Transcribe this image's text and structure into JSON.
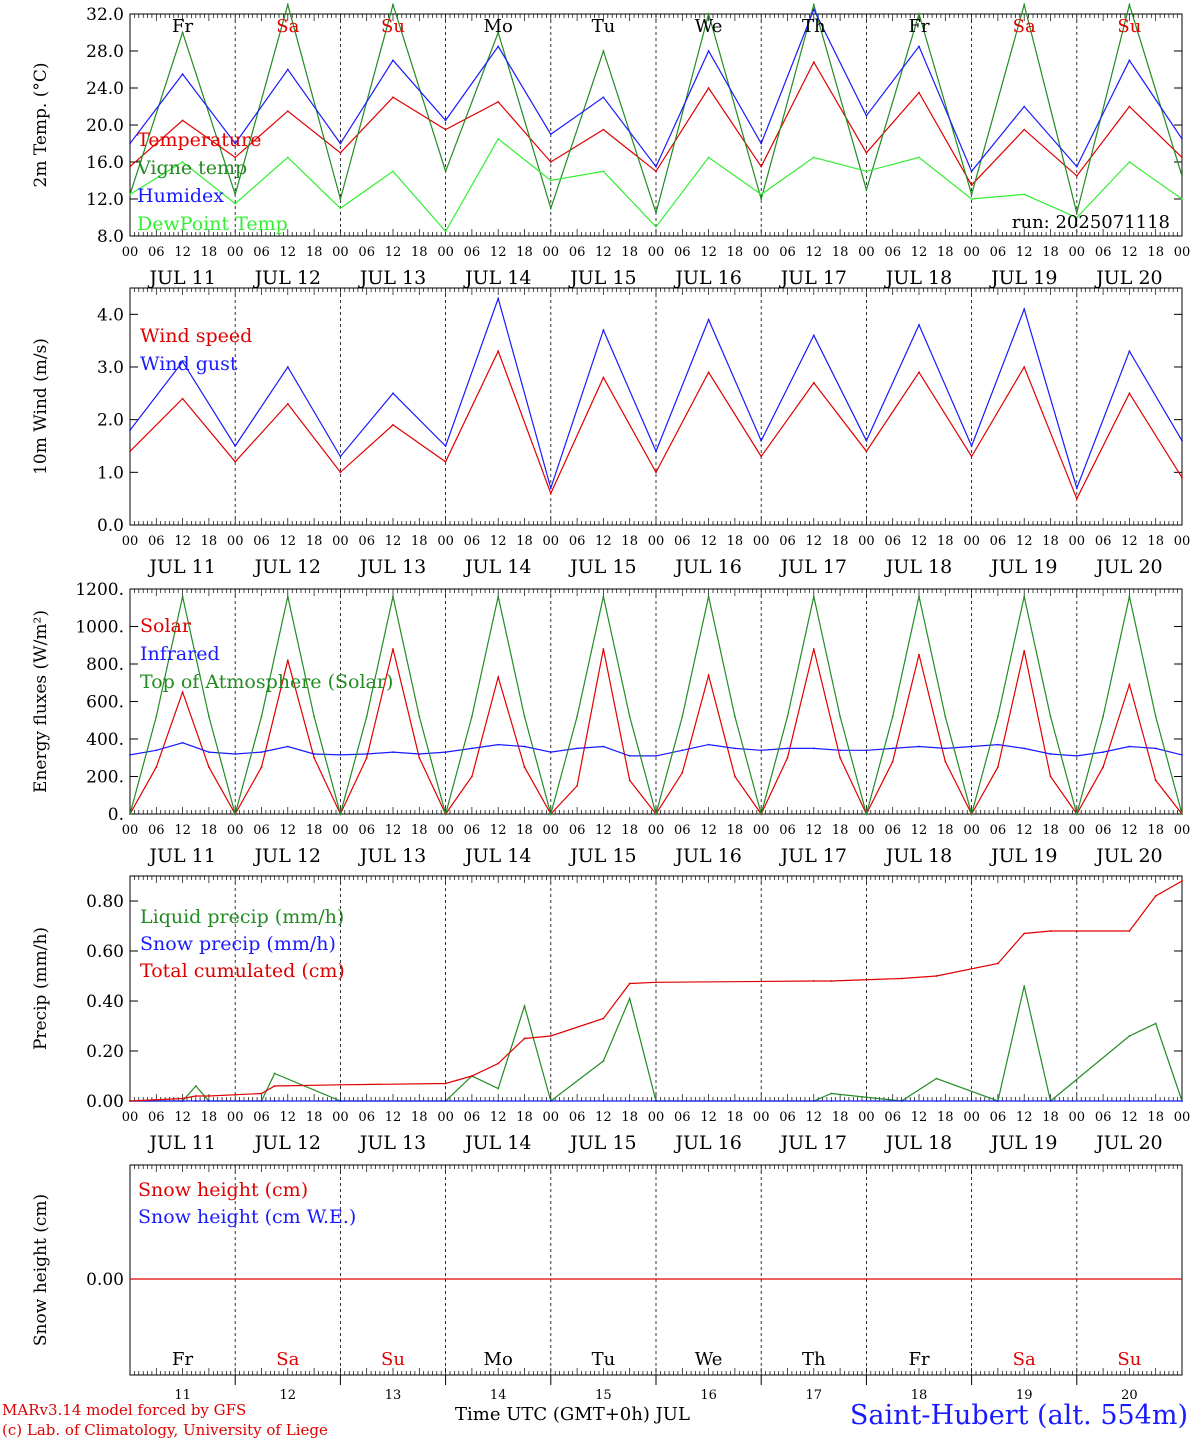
{
  "days": {
    "weekdays": [
      "Fr",
      "Sa",
      "Su",
      "Mo",
      "Tu",
      "We",
      "Th",
      "Fr",
      "Sa",
      "Su"
    ],
    "weekday_colors": [
      "#000000",
      "#e00000",
      "#e00000",
      "#000000",
      "#000000",
      "#000000",
      "#000000",
      "#000000",
      "#e00000",
      "#e00000"
    ],
    "dates": [
      "JUL 11",
      "JUL 12",
      "JUL 13",
      "JUL 14",
      "JUL 15",
      "JUL 16",
      "JUL 17",
      "JUL 18",
      "JUL 19",
      "JUL 20"
    ],
    "day_numbers": [
      "11",
      "12",
      "13",
      "14",
      "15",
      "16",
      "17",
      "18",
      "19",
      "20"
    ],
    "hour_labels": [
      "00",
      "06",
      "12",
      "18"
    ],
    "final_hour_label": "00"
  },
  "chart_data": [
    {
      "type": "line",
      "ylabel": "2m Temp. (°C)",
      "ylim": [
        8,
        32
      ],
      "yticks": [
        "8.0",
        "12.0",
        "16.0",
        "20.0",
        "24.0",
        "28.0",
        "32.0"
      ],
      "annotation": "run: 2025071118",
      "x_hours": [
        0,
        12,
        24,
        36,
        48,
        60,
        72,
        84,
        96,
        108,
        120,
        132,
        144,
        156,
        168,
        180,
        192,
        204,
        216,
        228,
        240
      ],
      "series": [
        {
          "name": "Temperature",
          "color": "#e00000",
          "values": [
            15.5,
            20.5,
            16.5,
            21.5,
            17,
            23,
            19.5,
            22.5,
            16,
            19.5,
            15,
            24,
            15.5,
            26.8,
            17,
            23.5,
            13.5,
            19.5,
            14.5,
            22,
            16.5
          ]
        },
        {
          "name": "Vigne temp",
          "color": "#228b22",
          "values": [
            12.5,
            30,
            12.5,
            33,
            12,
            33,
            15,
            30,
            11,
            28,
            10.5,
            32,
            12,
            33,
            13,
            32,
            12.5,
            33,
            10.5,
            33,
            14.5
          ]
        },
        {
          "name": "Humidex",
          "color": "#1a1aff",
          "values": [
            18,
            25.5,
            18,
            26,
            18,
            27,
            20.5,
            28.5,
            19,
            23,
            15.5,
            28,
            18,
            32.5,
            21,
            28.5,
            15,
            22,
            15.5,
            27,
            18.5
          ]
        },
        {
          "name": "DewPoint Temp",
          "color": "#33ee33",
          "values": [
            12.5,
            16,
            11.5,
            16.5,
            11,
            15,
            8.5,
            18.5,
            14,
            15,
            9,
            16.5,
            12.5,
            16.5,
            15,
            16.5,
            12,
            12.5,
            10,
            16,
            12
          ]
        }
      ]
    },
    {
      "type": "line",
      "ylabel": "10m Wind (m/s)",
      "ylim": [
        0,
        4.5
      ],
      "yticks": [
        "0.0",
        "1.0",
        "2.0",
        "3.0",
        "4.0"
      ],
      "x_hours": [
        0,
        12,
        24,
        36,
        48,
        60,
        72,
        84,
        96,
        108,
        120,
        132,
        144,
        156,
        168,
        180,
        192,
        204,
        216,
        228,
        240
      ],
      "series": [
        {
          "name": "Wind speed",
          "color": "#e00000",
          "values": [
            1.4,
            2.4,
            1.2,
            2.3,
            1.0,
            1.9,
            1.2,
            3.3,
            0.6,
            2.8,
            1.0,
            2.9,
            1.3,
            2.7,
            1.4,
            2.9,
            1.3,
            3.0,
            0.5,
            2.5,
            0.9
          ]
        },
        {
          "name": "Wind gust",
          "color": "#1a1aff",
          "values": [
            1.8,
            3.1,
            1.5,
            3.0,
            1.3,
            2.5,
            1.5,
            4.3,
            0.7,
            3.7,
            1.4,
            3.9,
            1.6,
            3.6,
            1.6,
            3.8,
            1.5,
            4.1,
            0.7,
            3.3,
            1.6
          ]
        }
      ]
    },
    {
      "type": "line",
      "ylabel": "Energy fluxes (W/m²)",
      "ylim": [
        0,
        1200
      ],
      "yticks": [
        "0.",
        "200.",
        "400.",
        "600.",
        "800.",
        "1000.",
        "1200."
      ],
      "x_hours": [
        0,
        6,
        12,
        18,
        24,
        30,
        36,
        42,
        48,
        54,
        60,
        66,
        72,
        78,
        84,
        90,
        96,
        102,
        108,
        114,
        120,
        126,
        132,
        138,
        144,
        150,
        156,
        162,
        168,
        174,
        180,
        186,
        192,
        198,
        204,
        210,
        216,
        222,
        228,
        234,
        240
      ],
      "series": [
        {
          "name": "Solar",
          "color": "#e00000",
          "values": [
            0,
            250,
            650,
            250,
            0,
            250,
            820,
            300,
            0,
            300,
            880,
            300,
            0,
            200,
            730,
            250,
            0,
            150,
            880,
            180,
            0,
            220,
            740,
            200,
            0,
            300,
            880,
            300,
            0,
            280,
            850,
            280,
            0,
            250,
            870,
            200,
            0,
            250,
            690,
            180,
            0
          ]
        },
        {
          "name": "Infrared",
          "color": "#1a1aff",
          "values": [
            315,
            340,
            380,
            330,
            320,
            330,
            360,
            320,
            315,
            320,
            330,
            320,
            330,
            350,
            370,
            360,
            330,
            350,
            360,
            310,
            310,
            340,
            370,
            350,
            340,
            350,
            350,
            340,
            340,
            350,
            360,
            350,
            360,
            370,
            350,
            320,
            310,
            330,
            360,
            350,
            315
          ]
        },
        {
          "name": "Top of Atmosphere (Solar)",
          "color": "#228b22",
          "values": [
            0,
            520,
            1160,
            520,
            0,
            520,
            1160,
            520,
            0,
            520,
            1160,
            520,
            0,
            520,
            1160,
            520,
            0,
            520,
            1160,
            520,
            0,
            520,
            1160,
            520,
            0,
            520,
            1160,
            520,
            0,
            520,
            1160,
            520,
            0,
            520,
            1160,
            520,
            0,
            520,
            1160,
            520,
            0
          ]
        }
      ]
    },
    {
      "type": "line",
      "ylabel": "Precip (mm/h)",
      "ylim": [
        0,
        0.9
      ],
      "yticks": [
        "0.00",
        "0.20",
        "0.40",
        "0.60",
        "0.80"
      ],
      "x_hours": [
        0,
        12,
        15,
        18,
        30,
        33,
        48,
        72,
        78,
        84,
        90,
        96,
        108,
        114,
        120,
        156,
        160,
        176,
        184,
        198,
        204,
        210,
        228,
        234,
        240
      ],
      "series": [
        {
          "name": "Liquid precip (mm/h)",
          "color": "#228b22",
          "values": [
            0,
            0,
            0.06,
            0,
            0,
            0.11,
            0,
            0,
            0.1,
            0.05,
            0.38,
            0,
            0.16,
            0.41,
            0,
            0,
            0.03,
            0,
            0.09,
            0,
            0.46,
            0,
            0.26,
            0.31,
            0
          ]
        },
        {
          "name": "Snow precip (mm/h)",
          "color": "#1a1aff",
          "values": [
            0,
            0,
            0,
            0,
            0,
            0,
            0,
            0,
            0,
            0,
            0,
            0,
            0,
            0,
            0,
            0,
            0,
            0,
            0,
            0,
            0,
            0,
            0,
            0,
            0
          ]
        },
        {
          "name": "Total cumulated (cm)",
          "color": "#e00000",
          "values": [
            0,
            0.01,
            0.02,
            0.02,
            0.03,
            0.06,
            0.065,
            0.07,
            0.1,
            0.15,
            0.25,
            0.26,
            0.33,
            0.47,
            0.475,
            0.48,
            0.48,
            0.49,
            0.5,
            0.55,
            0.67,
            0.68,
            0.68,
            0.82,
            0.88
          ]
        }
      ]
    },
    {
      "type": "line",
      "ylabel": "Snow height (cm)",
      "yticks": [
        "0.00"
      ],
      "x_hours": [
        0,
        240
      ],
      "series": [
        {
          "name": "Snow height (cm)",
          "color": "#e00000",
          "values": [
            0,
            0
          ]
        },
        {
          "name": "Snow height (cm W.E.)",
          "color": "#1a1aff",
          "values": [
            0,
            0
          ]
        }
      ]
    }
  ],
  "footer": {
    "model_line": "MARv3.14 model forced by GFS",
    "credit_line": "(c) Lab. of Climatology, University of Liege",
    "xaxis_label": "Time UTC (GMT+0h) JUL",
    "station": "Saint-Hubert (alt. 554m)"
  }
}
